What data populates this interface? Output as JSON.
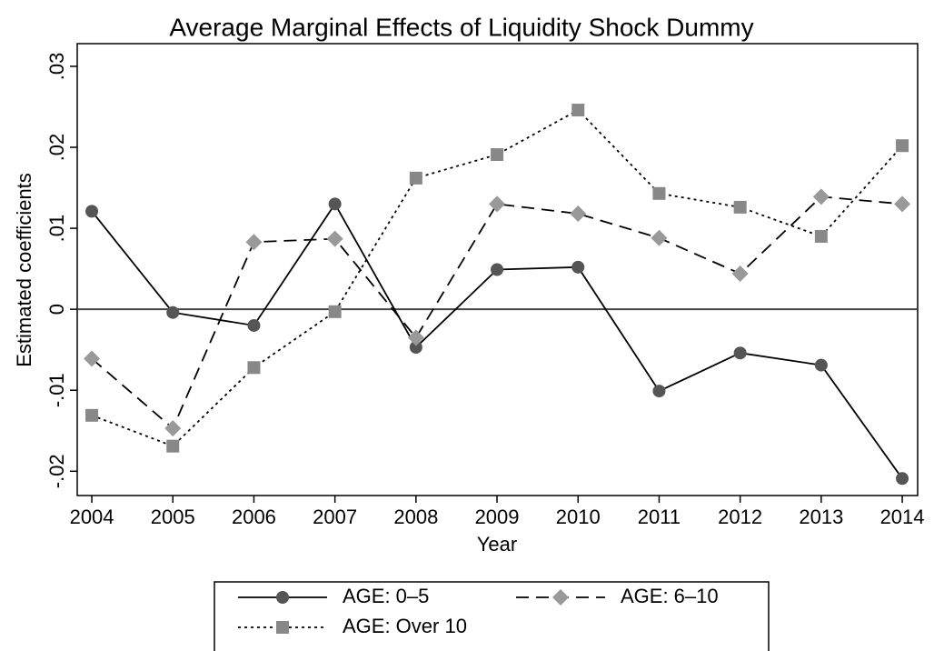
{
  "chart_data": {
    "type": "line",
    "title": "Average Marginal Effects of Liquidity Shock Dummy",
    "x_label": "Year",
    "y_label": "Estimated coefficients",
    "x": [
      2004,
      2005,
      2006,
      2007,
      2008,
      2009,
      2010,
      2011,
      2012,
      2013,
      2014
    ],
    "xlim": [
      2003.82,
      2014.19
    ],
    "xticks": [
      2004,
      2005,
      2006,
      2007,
      2008,
      2009,
      2010,
      2011,
      2012,
      2013,
      2014
    ],
    "ylim": [
      -0.023,
      0.0328
    ],
    "yticks": [
      {
        "value": -0.02,
        "label": "-.02"
      },
      {
        "value": -0.01,
        "label": "-.01"
      },
      0,
      {
        "value": 0.01,
        "label": ".01"
      },
      {
        "value": 0.02,
        "label": ".02"
      },
      {
        "value": 0.03,
        "label": ".03"
      }
    ],
    "reference_line": 0,
    "series": [
      {
        "name": "AGE: 0–5",
        "color": "#555555",
        "dash": "solid",
        "marker": "circle",
        "values": [
          0.0121,
          -0.0004,
          -0.002,
          0.013,
          -0.0047,
          0.0049,
          0.0052,
          -0.0101,
          -0.0054,
          -0.0069,
          -0.0209
        ]
      },
      {
        "name": "AGE: 6–10",
        "color": "#999999",
        "dash": "dashed",
        "marker": "diamond",
        "values": [
          -0.0061,
          -0.0147,
          0.0083,
          0.0087,
          -0.0035,
          0.013,
          0.0118,
          0.0088,
          0.0044,
          0.0139,
          0.013
        ]
      },
      {
        "name": "AGE: Over 10",
        "color": "#888888",
        "dash": "dotted",
        "marker": "square",
        "values": [
          -0.0131,
          -0.0169,
          -0.0072,
          -0.0003,
          0.0162,
          0.0191,
          0.0246,
          0.0143,
          0.0126,
          0.009,
          0.0202
        ]
      }
    ]
  }
}
